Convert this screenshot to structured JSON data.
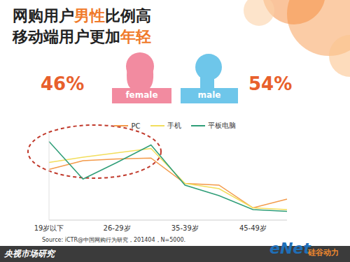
{
  "header": {
    "title_lines": [
      [
        "网购用户",
        "男性",
        "比例高"
      ],
      [
        "移动端用户更加",
        "年轻"
      ]
    ],
    "highlighted": [
      "男性",
      "年轻"
    ]
  },
  "gender": [
    {
      "label": "female",
      "share": "46%",
      "color": "#f28ba0"
    },
    {
      "label": "male",
      "share": "54%",
      "color": "#6ec6ea"
    }
  ],
  "chart_data": {
    "type": "line",
    "categories": [
      "19岁以下",
      null,
      "26-29岁",
      null,
      "35-39岁",
      null,
      "45-49岁",
      null
    ],
    "series": [
      {
        "name": "PC",
        "color": "#f39a4a",
        "values": [
          58,
          68,
          70,
          71,
          42,
          40,
          14,
          24
        ]
      },
      {
        "name": "手机",
        "color": "#f2de5c",
        "values": [
          66,
          72,
          77,
          82,
          42,
          36,
          14,
          12
        ]
      },
      {
        "name": "平板电脑",
        "color": "#2f9e78",
        "values": [
          90,
          47,
          66,
          86,
          40,
          28,
          12,
          10
        ]
      }
    ],
    "ylim": [
      0,
      100
    ],
    "tick_labels": "x",
    "grid": false,
    "legend": "top",
    "source": "Source: iCTR@中国网购行为研究，201404，N=5000."
  },
  "footer": {
    "text": "央视市场研究",
    "logo_main": "eNet",
    "logo_sub": "硅谷动力"
  }
}
